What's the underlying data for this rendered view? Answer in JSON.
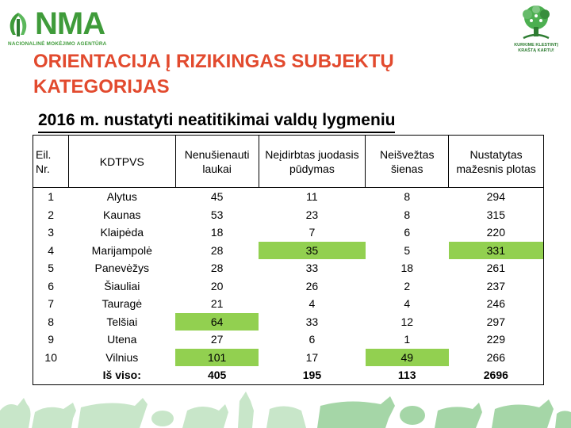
{
  "logo": {
    "name": "NMA",
    "subtitle": "NACIONALINĖ MOKĖJIMO AGENTŪRA"
  },
  "right_logo": {
    "line1": "KURKIME KLESTINTĮ",
    "line2": "KRAŠTĄ KARTU!"
  },
  "title": "ORIENTACIJA Į RIZIKINGAS SUBJEKTŲ KATEGORIJAS",
  "subtitle": "2016 m. nustatyti neatitikimai valdų lygmeniu",
  "colors": {
    "title": "#e24a2e",
    "brand": "#3f9b3a",
    "highlight": "#92d050"
  },
  "table": {
    "headers": [
      "Eil. Nr.",
      "KDTPVS",
      "Nenušienauti laukai",
      "Neįdirbtas juodasis pūdymas",
      "Neišvežtas šienas",
      "Nustatytas mažesnis plotas"
    ],
    "rows": [
      [
        "1",
        "Alytus",
        "45",
        "11",
        "8",
        "294"
      ],
      [
        "2",
        "Kaunas",
        "53",
        "23",
        "8",
        "315"
      ],
      [
        "3",
        "Klaipėda",
        "18",
        "7",
        "6",
        "220"
      ],
      [
        "4",
        "Marijampolė",
        "28",
        "35",
        "5",
        "331"
      ],
      [
        "5",
        "Panevėžys",
        "28",
        "33",
        "18",
        "261"
      ],
      [
        "6",
        "Šiauliai",
        "20",
        "26",
        "2",
        "237"
      ],
      [
        "7",
        "Tauragė",
        "21",
        "4",
        "4",
        "246"
      ],
      [
        "8",
        "Telšiai",
        "64",
        "33",
        "12",
        "297"
      ],
      [
        "9",
        "Utena",
        "27",
        "6",
        "1",
        "229"
      ],
      [
        "10",
        "Vilnius",
        "101",
        "17",
        "49",
        "266"
      ]
    ],
    "total": [
      "",
      "Iš viso:",
      "405",
      "195",
      "113",
      "2696"
    ]
  }
}
